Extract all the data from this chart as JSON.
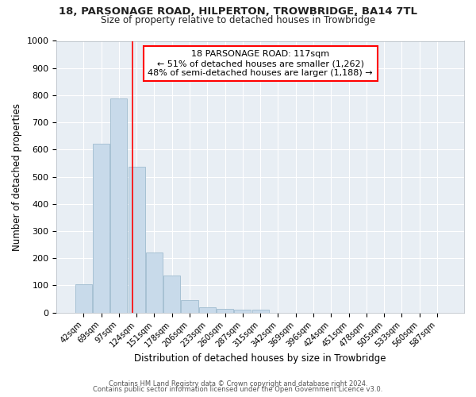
{
  "title": "18, PARSONAGE ROAD, HILPERTON, TROWBRIDGE, BA14 7TL",
  "subtitle": "Size of property relative to detached houses in Trowbridge",
  "xlabel": "Distribution of detached houses by size in Trowbridge",
  "ylabel": "Number of detached properties",
  "bar_color": "#c8daea",
  "bar_edge_color": "#a0bcd0",
  "categories": [
    "42sqm",
    "69sqm",
    "97sqm",
    "124sqm",
    "151sqm",
    "178sqm",
    "206sqm",
    "233sqm",
    "260sqm",
    "287sqm",
    "315sqm",
    "342sqm",
    "369sqm",
    "396sqm",
    "424sqm",
    "451sqm",
    "478sqm",
    "505sqm",
    "533sqm",
    "560sqm",
    "587sqm"
  ],
  "values": [
    103,
    622,
    787,
    537,
    222,
    135,
    45,
    18,
    13,
    10,
    10,
    0,
    0,
    0,
    0,
    0,
    0,
    0,
    0,
    0,
    0
  ],
  "annotation_title": "18 PARSONAGE ROAD: 117sqm",
  "annotation_line1": "← 51% of detached houses are smaller (1,262)",
  "annotation_line2": "48% of semi-detached houses are larger (1,188) →",
  "ylim": [
    0,
    1000
  ],
  "yticks": [
    0,
    100,
    200,
    300,
    400,
    500,
    600,
    700,
    800,
    900,
    1000
  ],
  "fig_bg": "#ffffff",
  "plot_bg": "#e8eef4",
  "grid_color": "#ffffff",
  "footer_line1": "Contains HM Land Registry data © Crown copyright and database right 2024.",
  "footer_line2": "Contains public sector information licensed under the Open Government Licence v3.0."
}
